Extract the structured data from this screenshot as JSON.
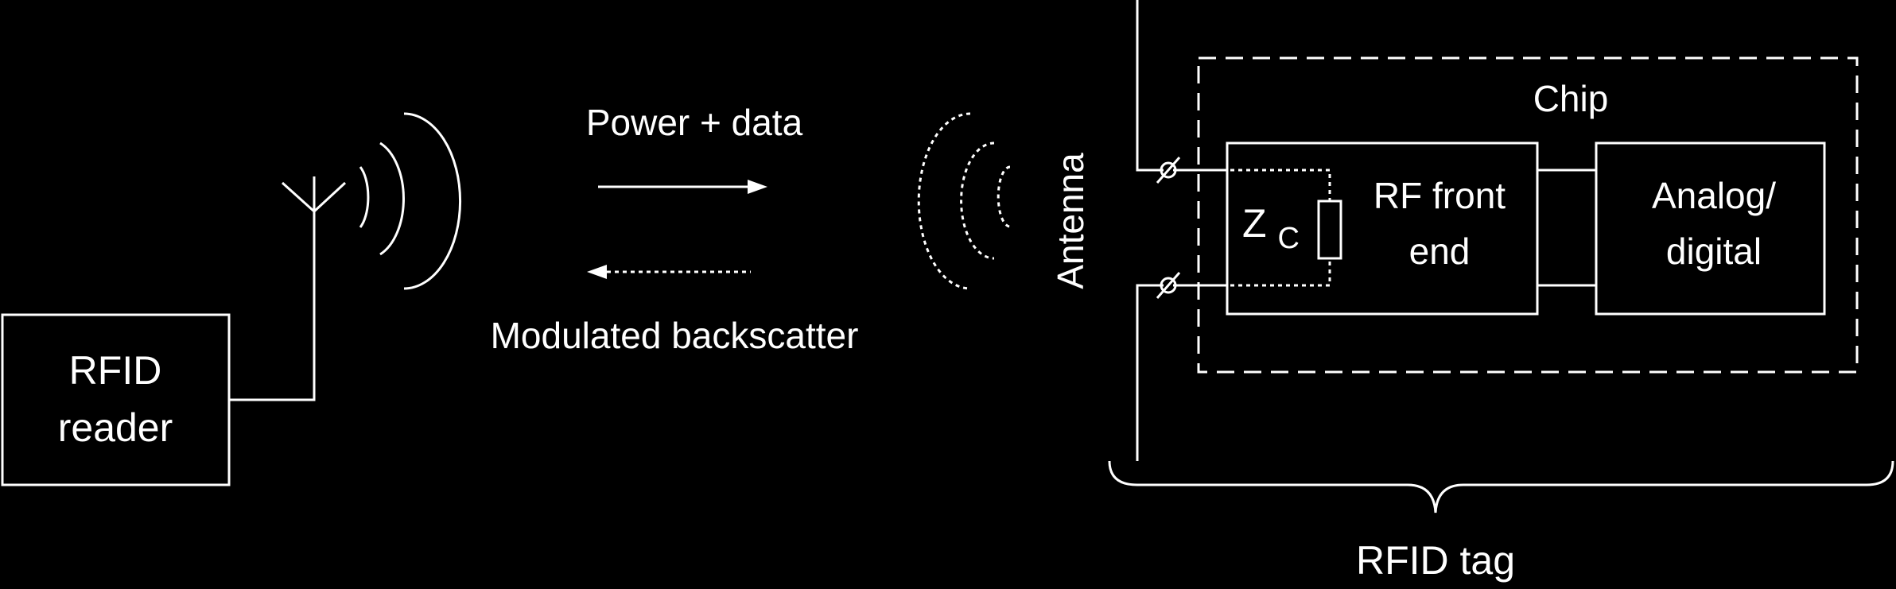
{
  "diagram": {
    "reader_line1": "RFID",
    "reader_line2": "reader",
    "forward_link": "Power + data",
    "return_link": "Modulated backscatter",
    "antenna": "Antenna",
    "chip": "Chip",
    "impedance_main": "Z",
    "impedance_sub": "C",
    "rf_line1": "RF front",
    "rf_line2": "end",
    "analog_line1": "Analog/",
    "analog_line2": "digital",
    "tag": "RFID tag"
  },
  "colors": {
    "background": "#000000",
    "foreground": "#ffffff"
  }
}
